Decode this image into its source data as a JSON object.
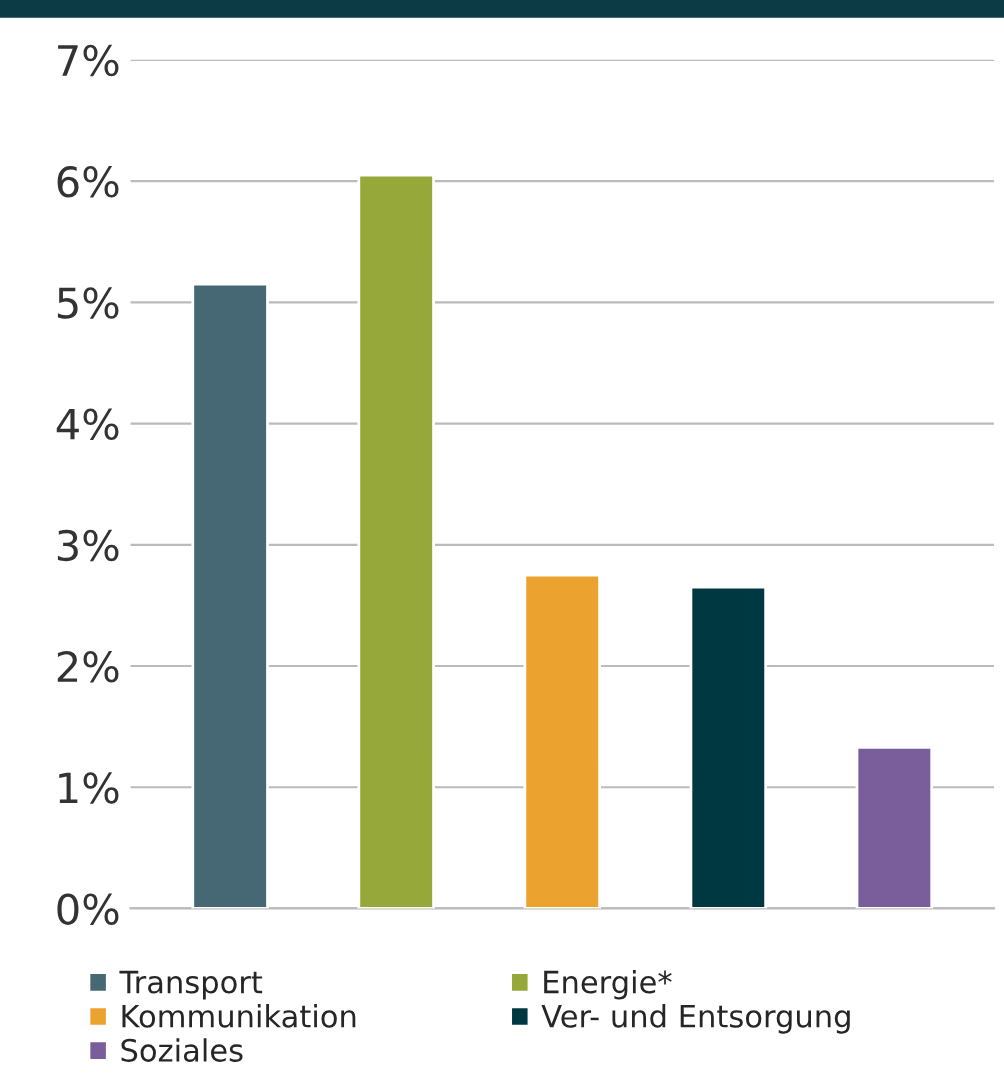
{
  "chart_data": {
    "type": "bar",
    "categories": [
      null,
      null,
      null,
      null,
      null
    ],
    "series": [
      {
        "name": "Transport",
        "color": "#456874",
        "values": [
          5.15,
          null,
          null,
          null,
          null
        ]
      },
      {
        "name": "Energie*",
        "color": "#96a83a",
        "values": [
          null,
          6.05,
          null,
          null,
          null
        ]
      },
      {
        "name": "Kommunikation",
        "color": "#eba22f",
        "values": [
          null,
          null,
          2.75,
          null,
          null
        ]
      },
      {
        "name": "Ver- und Entsorgung",
        "color": "#003842",
        "values": [
          null,
          null,
          null,
          2.65,
          null
        ]
      },
      {
        "name": "Soziales",
        "color": "#7a5e9c",
        "values": [
          null,
          null,
          null,
          null,
          1.33
        ]
      }
    ],
    "ylim": [
      0,
      7
    ],
    "yticks": [
      {
        "value": 0,
        "label": "0%"
      },
      {
        "value": 1,
        "label": "1%"
      },
      {
        "value": 2,
        "label": "2%"
      },
      {
        "value": 3,
        "label": "3%"
      },
      {
        "value": 4,
        "label": "4%"
      },
      {
        "value": 5,
        "label": "5%"
      },
      {
        "value": 6,
        "label": "6%"
      },
      {
        "value": 7,
        "label": "7%"
      }
    ],
    "grid": "y",
    "legend": "bottom",
    "tick_labels": "y"
  }
}
